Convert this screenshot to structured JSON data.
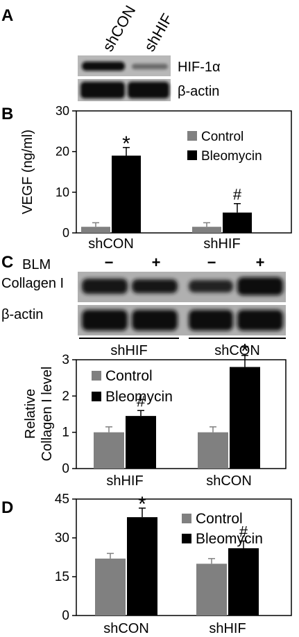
{
  "panels": {
    "A": {
      "letter": "A",
      "lanes": [
        "shCON",
        "shHIF"
      ],
      "blots": [
        "HIF-1α",
        "β-actin"
      ]
    },
    "C": {
      "letter": "C",
      "row_label": "BLM",
      "signs": [
        "−",
        "+",
        "−",
        "+"
      ],
      "blots": [
        "Collagen I",
        "β-actin"
      ],
      "groups": [
        "shHIF",
        "shCON"
      ]
    },
    "B": {
      "letter": "B"
    },
    "D": {
      "letter": "D"
    }
  },
  "colors": {
    "control": "#808080",
    "bleomycin": "#000000"
  },
  "chart_data": [
    {
      "panel": "B",
      "type": "bar",
      "categories": [
        "shCON",
        "shHIF"
      ],
      "ylabel": "VEGF (ng/ml)",
      "ylim": [
        0,
        30
      ],
      "yticks": [
        0,
        10,
        20,
        30
      ],
      "legend_position": "top-right",
      "series": [
        {
          "name": "Control",
          "values": [
            1.5,
            1.5
          ],
          "errors": [
            1.0,
            1.0
          ]
        },
        {
          "name": "Bleomycin",
          "values": [
            19,
            5
          ],
          "errors": [
            2.0,
            2.2
          ]
        }
      ],
      "annotations": [
        {
          "category": "shCON",
          "series": "Bleomycin",
          "text": "*"
        },
        {
          "category": "shHIF",
          "series": "Bleomycin",
          "text": "#"
        }
      ]
    },
    {
      "panel": "C",
      "type": "bar",
      "categories": [
        "shHIF",
        "shCON"
      ],
      "ylabel": "Relative Collagen I level",
      "ylabel_lines": [
        "Relative",
        "Collagen I level"
      ],
      "ylim": [
        0,
        3
      ],
      "yticks": [
        0,
        1,
        2,
        3
      ],
      "legend_position": "top-left",
      "series": [
        {
          "name": "Control",
          "values": [
            1.0,
            1.0
          ],
          "errors": [
            0.15,
            0.15
          ]
        },
        {
          "name": "Bleomycin",
          "values": [
            1.45,
            2.8
          ],
          "errors": [
            0.15,
            0.32
          ]
        }
      ],
      "annotations": [
        {
          "category": "shHIF",
          "series": "Bleomycin",
          "text": "#"
        },
        {
          "category": "shCON",
          "series": "Bleomycin",
          "text": "*"
        }
      ]
    },
    {
      "panel": "D",
      "type": "bar",
      "categories": [
        "shCON",
        "shHIF"
      ],
      "ylabel": "",
      "ylim": [
        0,
        45
      ],
      "yticks": [
        0,
        15,
        30,
        45
      ],
      "legend_position": "top-right",
      "series": [
        {
          "name": "Control",
          "values": [
            22,
            20
          ],
          "errors": [
            2.0,
            2.0
          ]
        },
        {
          "name": "Bleomycin",
          "values": [
            38,
            26
          ],
          "errors": [
            3.5,
            2.8
          ]
        }
      ],
      "annotations": [
        {
          "category": "shCON",
          "series": "Bleomycin",
          "text": "*"
        },
        {
          "category": "shHIF",
          "series": "Bleomycin",
          "text": "#"
        }
      ]
    }
  ]
}
